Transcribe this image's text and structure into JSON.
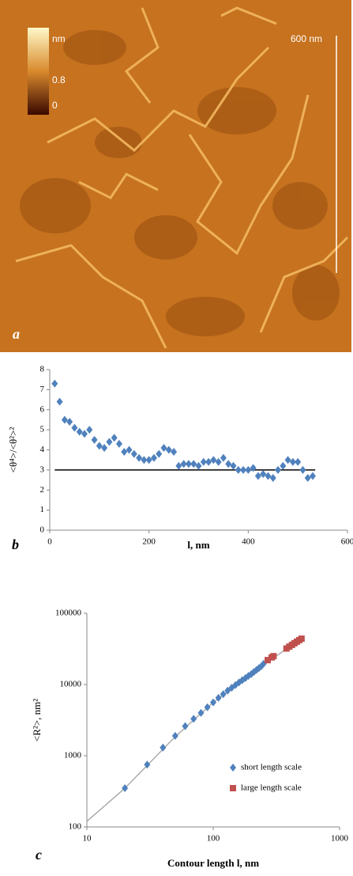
{
  "image_panel": {
    "label": "a",
    "colorbar_unit": "nm",
    "colorbar_labels": [
      "0.8",
      "0"
    ],
    "scale_bar": "600 nm"
  },
  "chart_data": [
    {
      "type": "scatter",
      "panel_label": "b",
      "y_label": "<θ⁴>/<θ²>²",
      "x_label": "l, nm",
      "xlim": [
        0,
        600
      ],
      "ylim": [
        0,
        8
      ],
      "xticks": [
        0,
        200,
        400,
        600
      ],
      "yticks": [
        0,
        1,
        2,
        3,
        4,
        5,
        6,
        7,
        8
      ],
      "series": [
        {
          "color": "#4f81bd",
          "marker": "diamond",
          "x": [
            10,
            20,
            30,
            40,
            50,
            60,
            70,
            80,
            90,
            100,
            110,
            120,
            130,
            140,
            150,
            160,
            170,
            180,
            190,
            200,
            210,
            220,
            230,
            240,
            250,
            260,
            270,
            280,
            290,
            300,
            310,
            320,
            330,
            340,
            350,
            360,
            370,
            380,
            390,
            400,
            410,
            420,
            430,
            440,
            450,
            460,
            470,
            480,
            490,
            500,
            510,
            520,
            530
          ],
          "values": [
            7.3,
            6.4,
            5.5,
            5.4,
            5.1,
            4.9,
            4.8,
            5.0,
            4.5,
            4.2,
            4.1,
            4.4,
            4.6,
            4.3,
            3.9,
            4.0,
            3.8,
            3.6,
            3.5,
            3.5,
            3.6,
            3.8,
            4.1,
            4.0,
            3.9,
            3.2,
            3.3,
            3.3,
            3.3,
            3.2,
            3.4,
            3.4,
            3.5,
            3.4,
            3.6,
            3.3,
            3.2,
            3.0,
            3.0,
            3.0,
            3.1,
            2.7,
            2.8,
            2.7,
            2.6,
            3.0,
            3.2,
            3.5,
            3.4,
            3.4,
            3.0,
            2.6,
            2.7
          ]
        }
      ],
      "reference_line": {
        "y": 3,
        "x": [
          10,
          535
        ],
        "color": "#000000"
      }
    },
    {
      "type": "scatter",
      "panel_label": "c",
      "y_label": "<R²>, nm²",
      "x_label": "Contour length l, nm",
      "log_x": true,
      "log_y": true,
      "xlim": [
        10,
        1000
      ],
      "ylim": [
        100,
        100000
      ],
      "xticks": [
        10,
        100,
        1000
      ],
      "yticks": [
        100,
        1000,
        10000,
        100000
      ],
      "legend": "lower right",
      "series": [
        {
          "name": "short length scale",
          "color": "#4f81bd",
          "marker": "diamond",
          "x": [
            20,
            30,
            40,
            50,
            60,
            70,
            80,
            90,
            100,
            110,
            120,
            130,
            140,
            150,
            160,
            170,
            180,
            190,
            200,
            210,
            220,
            230,
            240,
            250
          ],
          "values": [
            350,
            750,
            1300,
            1900,
            2600,
            3300,
            4000,
            4800,
            5600,
            6500,
            7300,
            8200,
            9000,
            9800,
            10700,
            11500,
            12300,
            13200,
            14000,
            15000,
            16000,
            17000,
            18000,
            19500
          ]
        },
        {
          "name": "large length scale",
          "color": "#c0504d",
          "marker": "square",
          "x": [
            270,
            290,
            300,
            380,
            400,
            420,
            440,
            460,
            480,
            500
          ],
          "values": [
            22000,
            24000,
            25000,
            32000,
            34000,
            36000,
            38000,
            40000,
            42000,
            44000
          ]
        }
      ],
      "fit_line": {
        "x": [
          10,
          20,
          50,
          100,
          200,
          500
        ],
        "y": [
          120,
          350,
          1850,
          5600,
          14000,
          45000
        ],
        "color": "#a0a0a0"
      }
    }
  ]
}
